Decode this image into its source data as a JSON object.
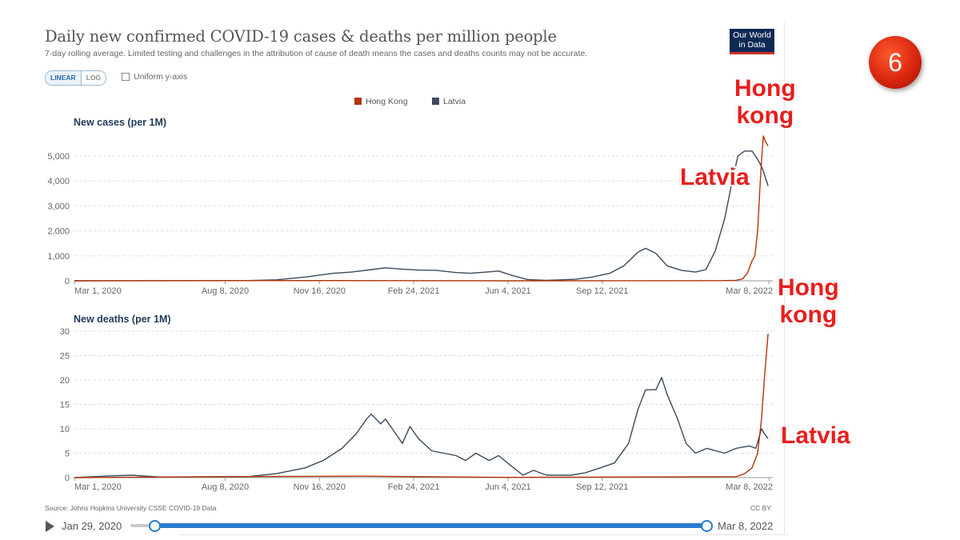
{
  "chart": {
    "title": "Daily new confirmed COVID-19 cases & deaths per million people",
    "subtitle": "7-day rolling average. Limited testing and challenges in the attribution of cause of death means the cases and deaths counts may not be accurate.",
    "logo_line1": "Our World",
    "logo_line2": "in Data",
    "scale_linear": "LINEAR",
    "scale_log": "LOG",
    "uniform_axis_label": "Uniform y-axis",
    "source": "Source: Johns Hopkins University CSSE COVID-19 Data",
    "license": "CC BY",
    "timeline_start": "Jan 29, 2020",
    "timeline_end": "Mar 8, 2022",
    "timeline_range": [
      0.04,
      1.0
    ]
  },
  "overlay": {
    "badge_number": "6",
    "annot_cases_hk": "Hong\nkong",
    "annot_cases_latvia": "Latvia",
    "annot_deaths_hk": "Hong\nkong",
    "annot_deaths_latvia": "Latvia"
  },
  "colors": {
    "hong_kong": "#b13507",
    "latvia": "#3a4a5c",
    "annotation": "#e81e1e",
    "grid": "#dddddd",
    "axis_text": "#666666"
  },
  "chart_data": [
    {
      "type": "line",
      "title": "New cases (per 1M)",
      "xlabel": "",
      "ylabel": "",
      "x_range": [
        "2020-03-01",
        "2022-03-12"
      ],
      "ylim": [
        0,
        5000
      ],
      "y_ticks": [
        "0",
        "1,000",
        "2,000",
        "3,000",
        "4,000",
        "5,000"
      ],
      "y_tick_values": [
        0,
        1000,
        2000,
        3000,
        4000,
        5000
      ],
      "x_ticks": [
        "Mar 1, 2020",
        "Aug 8, 2020",
        "Nov 16, 2020",
        "Feb 24, 2021",
        "Jun 4, 2021",
        "Sep 12, 2021",
        "Mar 8, 2022"
      ],
      "x_tick_dates": [
        "2020-03-01",
        "2020-08-08",
        "2020-11-16",
        "2021-02-24",
        "2021-06-04",
        "2021-09-12",
        "2022-03-08"
      ],
      "grid": true,
      "legend": "top-center",
      "series": [
        {
          "name": "Hong Kong",
          "points": [
            [
              "2020-03-01",
              0
            ],
            [
              "2020-08-01",
              10
            ],
            [
              "2020-12-01",
              10
            ],
            [
              "2021-06-01",
              0
            ],
            [
              "2022-01-15",
              5
            ],
            [
              "2022-02-01",
              20
            ],
            [
              "2022-02-08",
              80
            ],
            [
              "2022-02-13",
              300
            ],
            [
              "2022-02-18",
              800
            ],
            [
              "2022-02-21",
              1000
            ],
            [
              "2022-02-24",
              2000
            ],
            [
              "2022-02-26",
              3500
            ],
            [
              "2022-02-28",
              4800
            ],
            [
              "2022-03-02",
              5800
            ],
            [
              "2022-03-04",
              5600
            ],
            [
              "2022-03-07",
              5400
            ]
          ]
        },
        {
          "name": "Latvia",
          "points": [
            [
              "2020-03-01",
              0
            ],
            [
              "2020-06-01",
              3
            ],
            [
              "2020-09-01",
              10
            ],
            [
              "2020-10-01",
              40
            ],
            [
              "2020-11-01",
              150
            ],
            [
              "2020-12-01",
              300
            ],
            [
              "2020-12-20",
              350
            ],
            [
              "2021-01-10",
              450
            ],
            [
              "2021-01-25",
              520
            ],
            [
              "2021-02-10",
              470
            ],
            [
              "2021-03-01",
              430
            ],
            [
              "2021-03-20",
              420
            ],
            [
              "2021-04-10",
              330
            ],
            [
              "2021-04-25",
              300
            ],
            [
              "2021-05-15",
              360
            ],
            [
              "2021-05-25",
              390
            ],
            [
              "2021-06-10",
              200
            ],
            [
              "2021-06-25",
              50
            ],
            [
              "2021-07-15",
              20
            ],
            [
              "2021-08-15",
              60
            ],
            [
              "2021-09-01",
              150
            ],
            [
              "2021-09-20",
              300
            ],
            [
              "2021-10-05",
              600
            ],
            [
              "2021-10-20",
              1150
            ],
            [
              "2021-10-28",
              1300
            ],
            [
              "2021-11-08",
              1100
            ],
            [
              "2021-11-20",
              600
            ],
            [
              "2021-12-05",
              420
            ],
            [
              "2021-12-20",
              350
            ],
            [
              "2021-12-31",
              450
            ],
            [
              "2022-01-10",
              1200
            ],
            [
              "2022-01-20",
              2500
            ],
            [
              "2022-01-28",
              4000
            ],
            [
              "2022-02-03",
              5000
            ],
            [
              "2022-02-10",
              5200
            ],
            [
              "2022-02-18",
              5200
            ],
            [
              "2022-02-25",
              4800
            ],
            [
              "2022-03-01",
              4500
            ],
            [
              "2022-03-07",
              3800
            ]
          ]
        }
      ]
    },
    {
      "type": "line",
      "title": "New deaths (per 1M)",
      "xlabel": "",
      "ylabel": "",
      "x_range": [
        "2020-03-01",
        "2022-03-12"
      ],
      "ylim": [
        0,
        30
      ],
      "y_ticks": [
        "0",
        "5",
        "10",
        "15",
        "20",
        "25",
        "30"
      ],
      "y_tick_values": [
        0,
        5,
        10,
        15,
        20,
        25,
        30
      ],
      "x_ticks": [
        "Mar 1, 2020",
        "Aug 8, 2020",
        "Nov 16, 2020",
        "Feb 24, 2021",
        "Jun 4, 2021",
        "Sep 12, 2021",
        "Mar 8, 2022"
      ],
      "x_tick_dates": [
        "2020-03-01",
        "2020-08-08",
        "2020-11-16",
        "2021-02-24",
        "2021-06-04",
        "2021-09-12",
        "2022-03-08"
      ],
      "grid": true,
      "series": [
        {
          "name": "Hong Kong",
          "points": [
            [
              "2020-03-01",
              0
            ],
            [
              "2020-08-01",
              0.2
            ],
            [
              "2021-01-01",
              0.3
            ],
            [
              "2021-06-01",
              0.05
            ],
            [
              "2022-02-01",
              0.2
            ],
            [
              "2022-02-10",
              0.8
            ],
            [
              "2022-02-18",
              2
            ],
            [
              "2022-02-24",
              5
            ],
            [
              "2022-02-28",
              12
            ],
            [
              "2022-03-03",
              20
            ],
            [
              "2022-03-05",
              25
            ],
            [
              "2022-03-07",
              29.5
            ]
          ]
        },
        {
          "name": "Latvia",
          "points": [
            [
              "2020-03-01",
              0
            ],
            [
              "2020-04-01",
              0.3
            ],
            [
              "2020-05-01",
              0.5
            ],
            [
              "2020-06-01",
              0.1
            ],
            [
              "2020-09-01",
              0.2
            ],
            [
              "2020-10-01",
              0.8
            ],
            [
              "2020-11-01",
              2
            ],
            [
              "2020-11-20",
              3.5
            ],
            [
              "2020-12-10",
              6
            ],
            [
              "2020-12-25",
              9
            ],
            [
              "2021-01-05",
              12
            ],
            [
              "2021-01-10",
              13
            ],
            [
              "2021-01-20",
              11
            ],
            [
              "2021-01-25",
              12
            ],
            [
              "2021-02-05",
              9
            ],
            [
              "2021-02-12",
              7
            ],
            [
              "2021-02-20",
              10.5
            ],
            [
              "2021-03-01",
              8
            ],
            [
              "2021-03-15",
              5.5
            ],
            [
              "2021-04-10",
              4.5
            ],
            [
              "2021-04-20",
              3.5
            ],
            [
              "2021-05-01",
              5
            ],
            [
              "2021-05-15",
              3.5
            ],
            [
              "2021-05-25",
              4.5
            ],
            [
              "2021-06-10",
              2
            ],
            [
              "2021-06-20",
              0.5
            ],
            [
              "2021-07-01",
              1.5
            ],
            [
              "2021-07-15",
              0.5
            ],
            [
              "2021-08-10",
              0.5
            ],
            [
              "2021-08-25",
              1
            ],
            [
              "2021-09-10",
              2
            ],
            [
              "2021-09-25",
              3
            ],
            [
              "2021-10-10",
              7
            ],
            [
              "2021-10-20",
              14
            ],
            [
              "2021-10-28",
              18
            ],
            [
              "2021-11-08",
              18
            ],
            [
              "2021-11-14",
              20.5
            ],
            [
              "2021-11-20",
              17
            ],
            [
              "2021-12-01",
              12
            ],
            [
              "2021-12-10",
              7
            ],
            [
              "2021-12-20",
              5
            ],
            [
              "2022-01-01",
              6
            ],
            [
              "2022-01-20",
              5
            ],
            [
              "2022-02-01",
              6
            ],
            [
              "2022-02-15",
              6.5
            ],
            [
              "2022-02-22",
              6
            ],
            [
              "2022-02-28",
              10
            ],
            [
              "2022-03-03",
              9
            ],
            [
              "2022-03-07",
              8
            ]
          ]
        }
      ]
    }
  ]
}
